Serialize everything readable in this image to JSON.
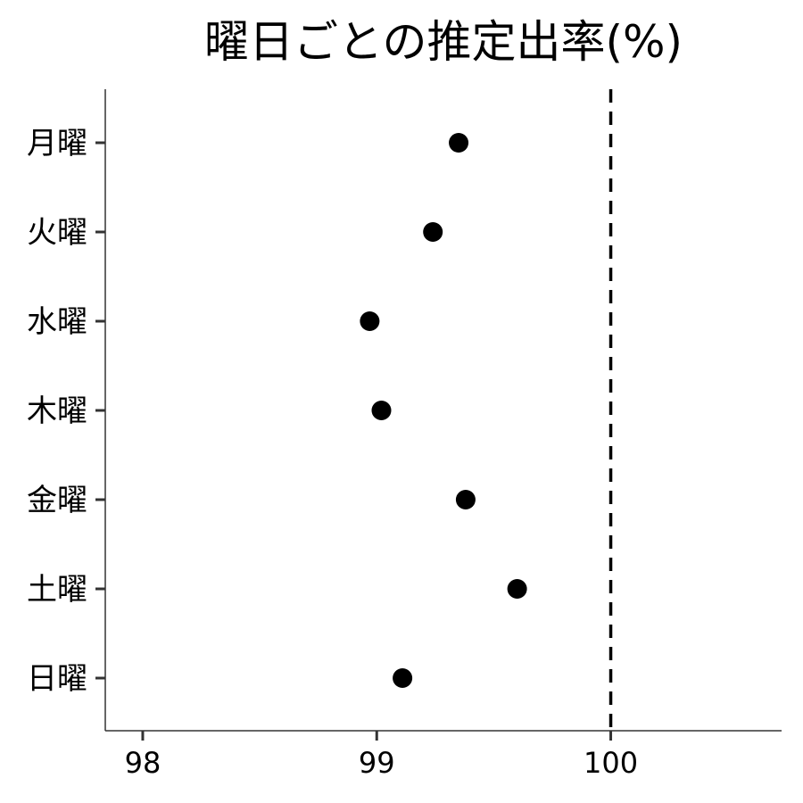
{
  "chart_data": {
    "type": "scatter",
    "title": "曜日ごとの推定出率(%)",
    "xlabel": "",
    "ylabel": "",
    "categories": [
      "月曜",
      "火曜",
      "水曜",
      "木曜",
      "金曜",
      "土曜",
      "日曜"
    ],
    "values": [
      99.35,
      99.24,
      98.97,
      99.02,
      99.38,
      99.6,
      99.11
    ],
    "xlim": [
      97.84,
      100.73
    ],
    "xticks": [
      98,
      99,
      100
    ],
    "xtick_labels": [
      "98",
      "99",
      "100"
    ],
    "reference_line": {
      "x": 100,
      "style": "dashed"
    },
    "grid": false,
    "legend": "none",
    "colors": {
      "point": "#000000",
      "axis": "#333333",
      "reference_line": "#000000"
    }
  }
}
